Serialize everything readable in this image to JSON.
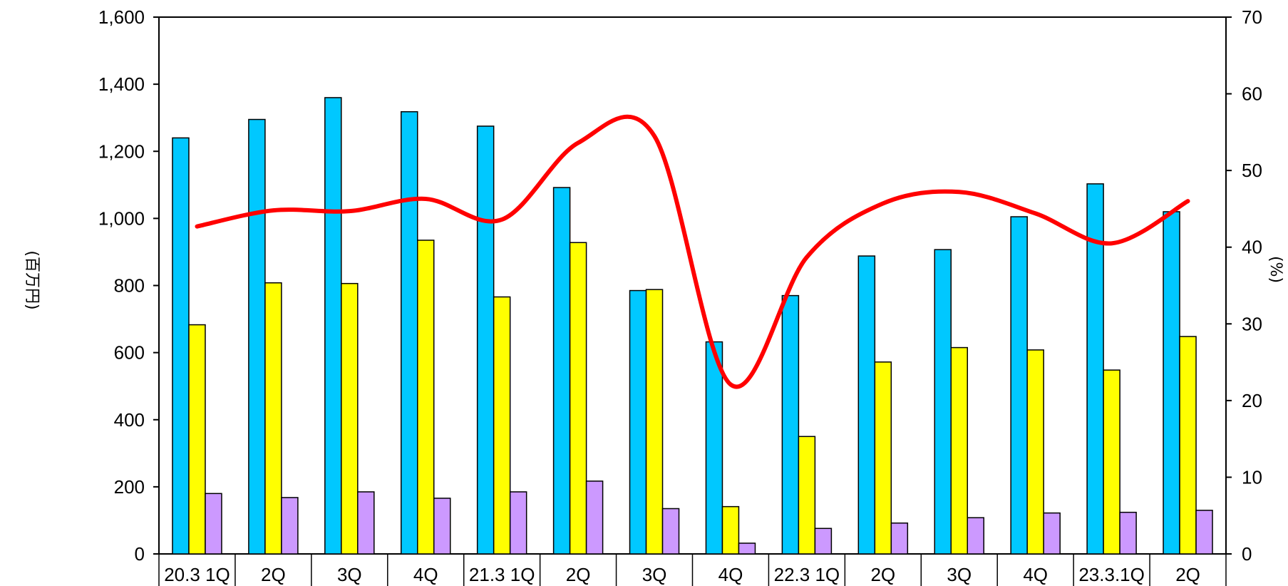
{
  "chart_data": {
    "type": "bar",
    "categories": [
      "20.3 1Q",
      "2Q",
      "3Q",
      "4Q",
      "21.3 1Q",
      "2Q",
      "3Q",
      "4Q",
      "22.3 1Q",
      "2Q",
      "3Q",
      "4Q",
      "23.3.1Q",
      "2Q"
    ],
    "series": [
      {
        "axis": "left",
        "kind": "bar",
        "color": "#00c8ff",
        "values": [
          1240,
          1295,
          1360,
          1318,
          1275,
          1092,
          785,
          632,
          770,
          888,
          907,
          1005,
          1103,
          1020
        ]
      },
      {
        "axis": "left",
        "kind": "bar",
        "color": "#ffff00",
        "values": [
          683,
          808,
          806,
          935,
          766,
          928,
          788,
          141,
          350,
          572,
          615,
          608,
          548,
          648
        ]
      },
      {
        "axis": "left",
        "kind": "bar",
        "color": "#cc99ff",
        "values": [
          180,
          168,
          185,
          166,
          185,
          217,
          135,
          32,
          76,
          92,
          108,
          122,
          124,
          130
        ]
      },
      {
        "axis": "right",
        "kind": "line",
        "color": "#ff0000",
        "values": [
          42.7,
          44.8,
          44.7,
          46.3,
          43.6,
          53.6,
          54.5,
          22.1,
          38.7,
          45.7,
          47.2,
          44.4,
          40.5,
          46.0
        ]
      }
    ],
    "ylabel": "(百万円)",
    "y2label": "(%)",
    "ylim": [
      0,
      1600
    ],
    "y2lim": [
      0,
      70
    ],
    "yticks": [
      "0",
      "200",
      "400",
      "600",
      "800",
      "1,000",
      "1,200",
      "1,400",
      "1,600"
    ],
    "y2ticks": [
      "0",
      "10",
      "20",
      "30",
      "40",
      "50",
      "60",
      "70"
    ],
    "grid": false,
    "legend": "none"
  }
}
